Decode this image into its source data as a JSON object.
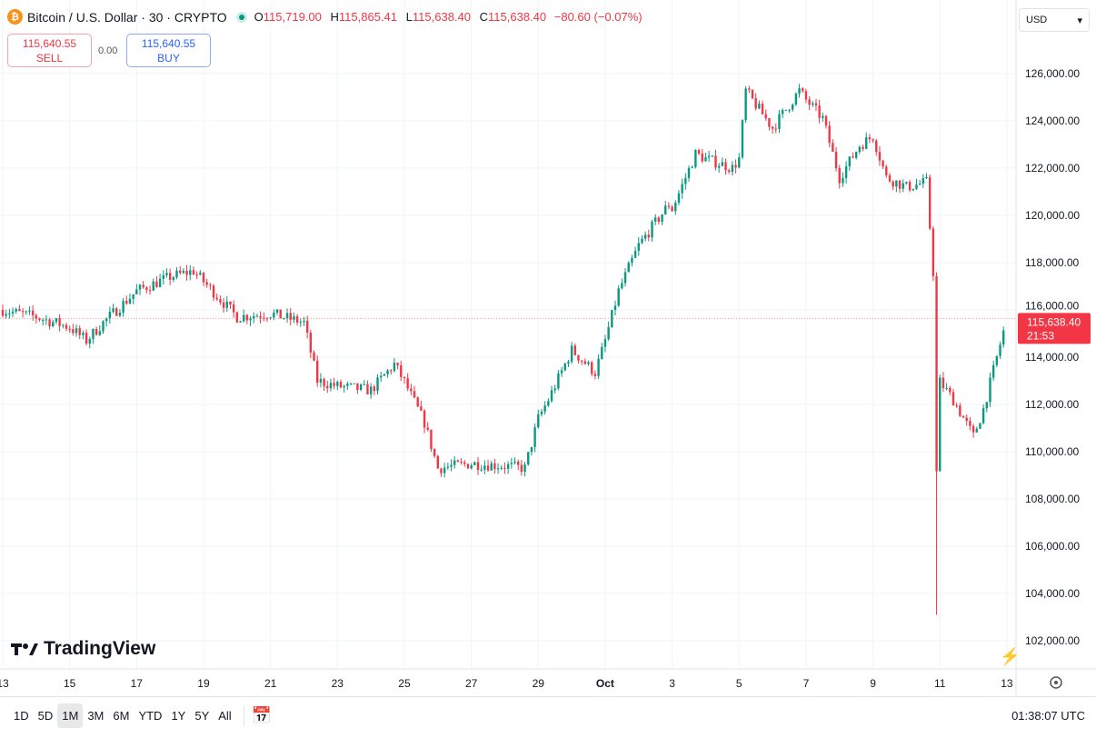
{
  "header": {
    "symbol": "Bitcoin / U.S. Dollar · 30 · CRYPTO",
    "coin_glyph": "₿",
    "open_label": "O",
    "open": "115,719.00",
    "high_label": "H",
    "high": "115,865.41",
    "low_label": "L",
    "low": "115,638.40",
    "close_label": "C",
    "close": "115,638.40",
    "change": "−80.60 (−0.07%)"
  },
  "trade": {
    "sell_price": "115,640.55",
    "sell_label": "SELL",
    "spread": "0.00",
    "buy_price": "115,640.55",
    "buy_label": "BUY"
  },
  "currency": {
    "value": "USD",
    "icon": "chevron-down-icon"
  },
  "price_tag": {
    "price": "115,638.40",
    "countdown": "21:53"
  },
  "logo": "TradingView",
  "ranges": [
    {
      "label": "1D"
    },
    {
      "label": "5D"
    },
    {
      "label": "1M",
      "active": true
    },
    {
      "label": "3M"
    },
    {
      "label": "6M"
    },
    {
      "label": "YTD"
    },
    {
      "label": "1Y"
    },
    {
      "label": "5Y"
    },
    {
      "label": "All"
    }
  ],
  "time_utc": "01:38:07 UTC",
  "colors": {
    "up": "#089981",
    "down": "#f23645",
    "grid": "#f0f3fa"
  },
  "chart_data": {
    "type": "candlestick",
    "interval": "30",
    "ylim": [
      101000,
      127000
    ],
    "yticks": [
      "102,000.00",
      "104,000.00",
      "106,000.00",
      "108,000.00",
      "110,000.00",
      "112,000.00",
      "114,000.00",
      "116,000.00",
      "118,000.00",
      "120,000.00",
      "122,000.00",
      "124,000.00",
      "126,000.00"
    ],
    "ytick_values": [
      102000,
      104000,
      106000,
      108000,
      110000,
      112000,
      114000,
      116000,
      118000,
      120000,
      122000,
      124000,
      126000
    ],
    "xticks": [
      "13",
      "15",
      "17",
      "19",
      "21",
      "23",
      "25",
      "27",
      "29",
      "Oct",
      "3",
      "5",
      "7",
      "9",
      "11",
      "13"
    ],
    "xtick_days": [
      0,
      2,
      4,
      6,
      8,
      10,
      12,
      14,
      16,
      18,
      20,
      22,
      24,
      26,
      28,
      30
    ],
    "last_price": 115638.4,
    "approx_path": [
      [
        "Sep 13",
        116000
      ],
      [
        "Sep 14",
        115700
      ],
      [
        "Sep 15",
        115270
      ],
      [
        "Sep 15.5",
        114700
      ],
      [
        "Sep 16",
        115460
      ],
      [
        "Sep 17",
        116800
      ],
      [
        "Sep 18",
        117400
      ],
      [
        "Sep 18.7",
        117650
      ],
      [
        "Sep 19",
        117200
      ],
      [
        "Sep 20",
        115700
      ],
      [
        "Sep 21",
        115850
      ],
      [
        "Sep 22",
        115460
      ],
      [
        "Sep 22.4",
        113000
      ],
      [
        "Sep 23",
        112770
      ],
      [
        "Sep 24",
        112600
      ],
      [
        "Sep 24.7",
        113700
      ],
      [
        "Sep 25",
        112960
      ],
      [
        "Sep 25.6",
        111230
      ],
      [
        "Sep 26",
        109300
      ],
      [
        "Sep 27",
        109500
      ],
      [
        "Sep 28",
        109400
      ],
      [
        "Sep 28.6",
        109300
      ],
      [
        "Sep 29",
        111400
      ],
      [
        "Sep 29.3",
        112200
      ],
      [
        "Sep 30",
        114300
      ],
      [
        "Sep 30.7",
        113350
      ],
      [
        "Oct 1",
        114700
      ],
      [
        "Oct 1.4",
        116800
      ],
      [
        "Oct 2",
        118730
      ],
      [
        "Oct 2.9",
        120460
      ],
      [
        "Oct 3",
        120270
      ],
      [
        "Oct 3.7",
        122600
      ],
      [
        "Oct 4",
        122400
      ],
      [
        "Oct 4.8",
        122000
      ],
      [
        "Oct 5",
        122400
      ],
      [
        "Oct 5.2",
        125270
      ],
      [
        "Oct 6",
        123700
      ],
      [
        "Oct 6.8",
        125270
      ],
      [
        "Oct 7",
        124880
      ],
      [
        "Oct 7.5",
        124100
      ],
      [
        "Oct 8",
        121600
      ],
      [
        "Oct 8.6",
        122960
      ],
      [
        "Oct 9",
        123350
      ],
      [
        "Oct 9.4",
        121600
      ],
      [
        "Oct 10",
        121200
      ],
      [
        "Oct 10.6",
        121400
      ],
      [
        "Oct 10.8",
        117600
      ],
      [
        "Oct 10.9",
        109100
      ],
      [
        "Oct 11",
        112960
      ],
      [
        "Oct 11.4",
        112200
      ],
      [
        "Oct 12",
        110650
      ],
      [
        "Oct 12.3",
        111800
      ],
      [
        "Oct 13",
        115638.4
      ]
    ],
    "spike_low": 103100
  }
}
